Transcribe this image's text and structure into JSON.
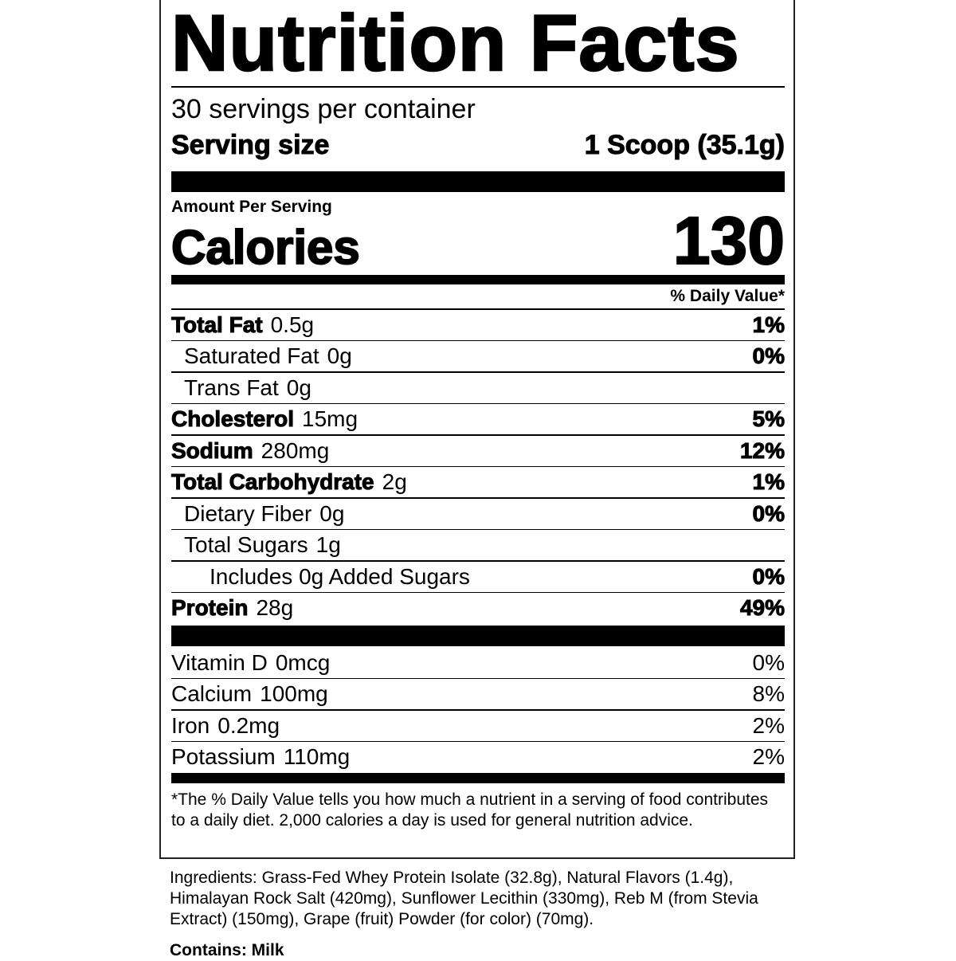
{
  "title": "Nutrition Facts",
  "servings_per_container": "30 servings per container",
  "serving_size_label": "Serving size",
  "serving_size_value": "1 Scoop (35.1g)",
  "amount_per_serving": "Amount Per Serving",
  "calories_label": "Calories",
  "calories_value": "130",
  "daily_value_header": "% Daily Value*",
  "nutrients": [
    {
      "name": "Total Fat",
      "amount": "0.5g",
      "dv": "1%",
      "indent": 0,
      "bold": true
    },
    {
      "name": "Saturated Fat",
      "amount": "0g",
      "dv": "0%",
      "indent": 1,
      "bold": false
    },
    {
      "name": "Trans Fat",
      "amount": "0g",
      "dv": "",
      "indent": 1,
      "bold": false
    },
    {
      "name": "Cholesterol",
      "amount": "15mg",
      "dv": "5%",
      "indent": 0,
      "bold": true
    },
    {
      "name": "Sodium",
      "amount": "280mg",
      "dv": "12%",
      "indent": 0,
      "bold": true
    },
    {
      "name": "Total Carbohydrate",
      "amount": "2g",
      "dv": "1%",
      "indent": 0,
      "bold": true
    },
    {
      "name": "Dietary Fiber",
      "amount": "0g",
      "dv": "0%",
      "indent": 1,
      "bold": false
    },
    {
      "name": "Total Sugars",
      "amount": "1g",
      "dv": "",
      "indent": 1,
      "bold": false
    },
    {
      "name": "Includes 0g Added Sugars",
      "amount": "",
      "dv": "0%",
      "indent": 2,
      "bold": false
    },
    {
      "name": "Protein",
      "amount": "28g",
      "dv": "49%",
      "indent": 0,
      "bold": true
    }
  ],
  "vitamins": [
    {
      "name": "Vitamin D",
      "amount": "0mcg",
      "dv": "0%"
    },
    {
      "name": "Calcium",
      "amount": "100mg",
      "dv": "8%"
    },
    {
      "name": "Iron",
      "amount": "0.2mg",
      "dv": "2%"
    },
    {
      "name": "Potassium",
      "amount": "110mg",
      "dv": "2%"
    }
  ],
  "footnote": "*The % Daily Value tells you how much a nutrient in a serving of food contributes to a daily diet. 2,000 calories a day is used for general nutrition advice.",
  "ingredients": "Ingredients: Grass-Fed Whey Protein Isolate (32.8g), Natural Flavors (1.4g), Himalayan Rock Salt (420mg), Sunflower Lecithin (330mg), Reb M (from Stevia Extract) (150mg), Grape (fruit) Powder (for color) (70mg).",
  "contains": "Contains: Milk"
}
